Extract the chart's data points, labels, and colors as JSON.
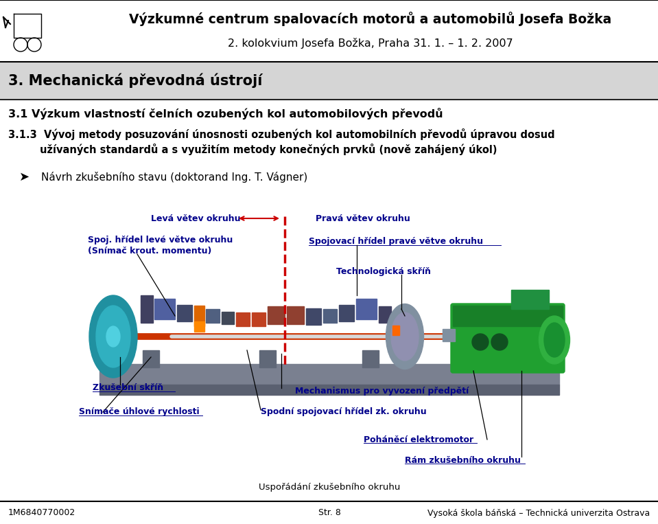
{
  "header_title": "Výzkumné centrum spalovacích motorů a automobilů Josefa Božka",
  "header_subtitle": "2. kolokvium Josefa Božka, Praha 31. 1. – 1. 2. 2007",
  "section_title": "3. Mechanická převodná ústrojí",
  "subsection1": "3.1 Výzkum vlastností čelních ozubených kol automobilových převodů",
  "subsection2_line1": "3.1.3  Vývoj metody posuzování únosnosti ozubených kol automobilních převodů úpravou dosud",
  "subsection2_line2": "         užívaných standardů a s využitím metody konečných prvků (nově zahájený úkol)",
  "bullet": "Návrh zkušebního stavu (doktorand Ing. T. Vágner)",
  "footer_left": "1M6840770002",
  "footer_center": "Str. 8",
  "footer_right": "Vysoká škola báňská – Technická univerzita Ostrava",
  "label_color": "#00008B",
  "label_leva": "Levá větev okruhu",
  "label_prava": "Pravá větev okruhu",
  "label_spoj_leve_1": "Spoj. hřídel levé větve okruhu",
  "label_spoj_leve_2": "(Snímač krout. momentu)",
  "label_spojovaci_prave": "Spojovací hřídel pravé větve okruhu",
  "label_techno": "Technologická skříň",
  "label_zkusebni": "Zkušební skříň",
  "label_snimace": "Snímače úhlové rychlosti",
  "label_mechanismus": "Mechanismus pro vyvození předpětí",
  "label_spodni": "Spodní spojovací hřídel zk. okruhu",
  "label_pohanci": "Poháněcí elektromotor",
  "label_ram": "Rám zkušebního okruhu",
  "label_usporadani": "Uspořádání zkušebního okruhu",
  "bg_color": "#ffffff",
  "section_bg": "#d8d8d8",
  "text_color": "#000000",
  "arrow_color": "#cc0000"
}
